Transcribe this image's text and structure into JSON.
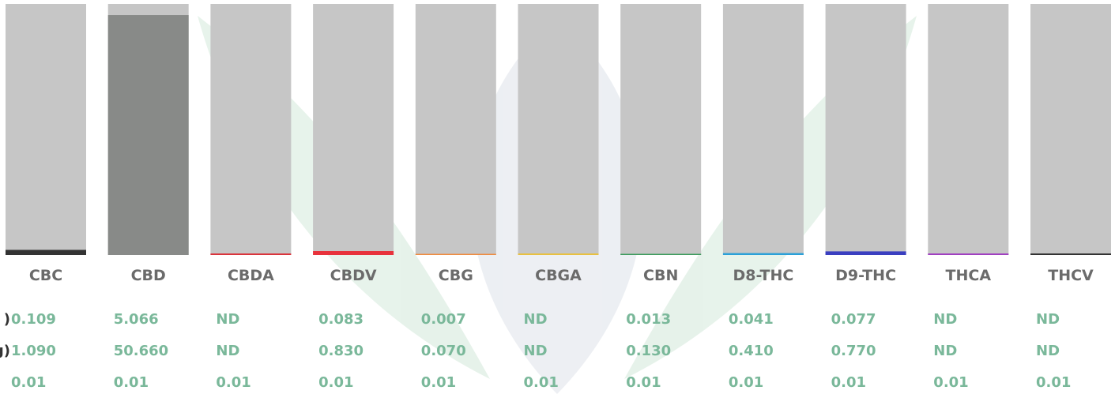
{
  "chart_data": {
    "type": "bar",
    "categories": [
      "CBC",
      "CBD",
      "CBDA",
      "CBDV",
      "CBG",
      "CBGA",
      "CBN",
      "D8-THC",
      "D9-THC",
      "THCA",
      "THCV"
    ],
    "colors": [
      "#333333",
      "#888a88",
      "#d9343c",
      "#e8323c",
      "#f08a3c",
      "#e8c040",
      "#3a9a5a",
      "#2aa0d8",
      "#3a3fc0",
      "#a040c0",
      "#333333"
    ],
    "ylim": [
      0,
      5.3
    ],
    "rows": [
      {
        "label": ")",
        "values": [
          0.109,
          5.066,
          null,
          0.083,
          0.007,
          null,
          0.013,
          0.041,
          0.077,
          null,
          null
        ],
        "value_labels": [
          "0.109",
          "5.066",
          "ND",
          "0.083",
          "0.007",
          "ND",
          "0.013",
          "0.041",
          "0.077",
          "ND",
          "ND"
        ]
      },
      {
        "label": "g)",
        "values": [
          1.09,
          50.66,
          null,
          0.83,
          0.07,
          null,
          0.13,
          0.41,
          0.77,
          null,
          null
        ],
        "value_labels": [
          "1.090",
          "50.660",
          "ND",
          "0.830",
          "0.070",
          "ND",
          "0.130",
          "0.410",
          "0.770",
          "ND",
          "ND"
        ]
      },
      {
        "values": [
          0.01,
          0.01,
          0.01,
          0.01,
          0.01,
          0.01,
          0.01,
          0.01,
          0.01,
          0.01,
          0.01
        ],
        "value_labels": [
          "0.01",
          "0.01",
          "0.01",
          "0.01",
          "0.01",
          "0.01",
          "0.01",
          "0.01",
          "0.01",
          "0.01",
          "0.01"
        ]
      }
    ]
  }
}
